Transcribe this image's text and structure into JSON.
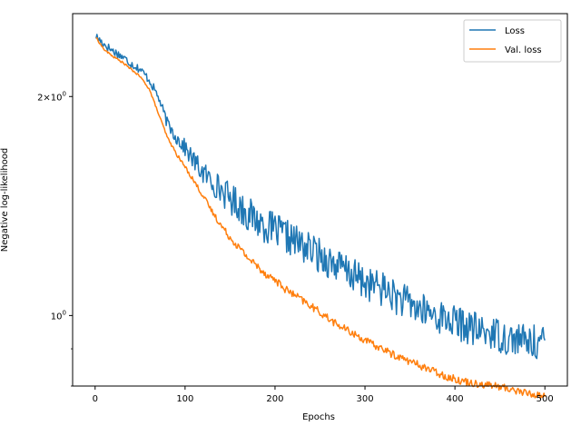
{
  "chart_data": {
    "type": "line",
    "title": "",
    "xlabel": "Epochs",
    "ylabel": "Negative log-likelihood",
    "xlim": [
      -25,
      525
    ],
    "ylim": [
      0.8,
      2.6
    ],
    "y_scale": "log",
    "x_ticks": [
      0,
      100,
      200,
      300,
      400,
      500
    ],
    "x_tick_labels": [
      "0",
      "100",
      "200",
      "300",
      "400",
      "500"
    ],
    "y_major_ticks": [
      1,
      2
    ],
    "y_major_tick_labels": [
      "10^0",
      "2×10^0"
    ],
    "y_minor_ticks": [
      0.8,
      0.9
    ],
    "grid": false,
    "legend": {
      "placement": "top-right",
      "entries": [
        "Loss",
        "Val. loss"
      ]
    },
    "colors": {
      "loss": "#1f77b4",
      "val_loss": "#ff7f0e"
    },
    "series": [
      {
        "name": "Loss",
        "color": "#1f77b4",
        "x": [
          1,
          10,
          20,
          30,
          40,
          50,
          60,
          70,
          80,
          90,
          100,
          110,
          120,
          130,
          140,
          150,
          160,
          170,
          180,
          190,
          200,
          210,
          220,
          230,
          240,
          250,
          260,
          270,
          280,
          290,
          300,
          310,
          320,
          330,
          340,
          350,
          360,
          370,
          380,
          390,
          400,
          410,
          420,
          430,
          440,
          450,
          460,
          470,
          480,
          490,
          500
        ],
        "y": [
          2.42,
          2.36,
          2.31,
          2.27,
          2.22,
          2.18,
          2.11,
          2.0,
          1.84,
          1.76,
          1.7,
          1.63,
          1.57,
          1.53,
          1.49,
          1.45,
          1.42,
          1.38,
          1.35,
          1.33,
          1.31,
          1.29,
          1.27,
          1.25,
          1.23,
          1.21,
          1.19,
          1.17,
          1.15,
          1.13,
          1.11,
          1.1,
          1.09,
          1.07,
          1.05,
          1.04,
          1.02,
          1.01,
          1.0,
          0.99,
          0.98,
          0.97,
          0.96,
          0.95,
          0.95,
          0.94,
          0.93,
          0.93,
          0.92,
          0.92,
          0.92
        ],
        "noise": 0.055
      },
      {
        "name": "Val. loss",
        "color": "#ff7f0e",
        "x": [
          1,
          10,
          20,
          30,
          40,
          50,
          60,
          70,
          80,
          90,
          100,
          110,
          120,
          130,
          140,
          150,
          160,
          170,
          180,
          190,
          200,
          210,
          220,
          230,
          240,
          250,
          260,
          270,
          280,
          290,
          300,
          310,
          320,
          330,
          340,
          350,
          360,
          370,
          380,
          390,
          400,
          410,
          420,
          430,
          440,
          450,
          460,
          470,
          480,
          490,
          500
        ],
        "y": [
          2.41,
          2.32,
          2.27,
          2.23,
          2.18,
          2.13,
          2.05,
          1.9,
          1.76,
          1.67,
          1.6,
          1.53,
          1.46,
          1.39,
          1.33,
          1.28,
          1.24,
          1.2,
          1.17,
          1.14,
          1.12,
          1.09,
          1.07,
          1.05,
          1.03,
          1.01,
          0.99,
          0.97,
          0.955,
          0.94,
          0.925,
          0.91,
          0.9,
          0.885,
          0.875,
          0.865,
          0.855,
          0.845,
          0.835,
          0.825,
          0.818,
          0.812,
          0.808,
          0.805,
          0.802,
          0.798,
          0.793,
          0.788,
          0.782,
          0.778,
          0.775
        ],
        "noise": 0.012
      }
    ]
  }
}
